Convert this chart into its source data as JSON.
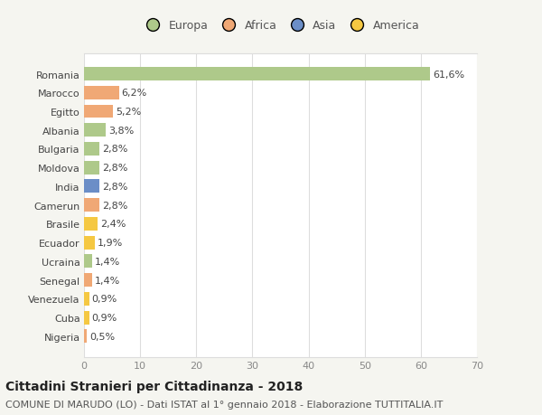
{
  "countries": [
    "Romania",
    "Marocco",
    "Egitto",
    "Albania",
    "Bulgaria",
    "Moldova",
    "India",
    "Camerun",
    "Brasile",
    "Ecuador",
    "Ucraina",
    "Senegal",
    "Venezuela",
    "Cuba",
    "Nigeria"
  ],
  "values": [
    61.6,
    6.2,
    5.2,
    3.8,
    2.8,
    2.8,
    2.8,
    2.8,
    2.4,
    1.9,
    1.4,
    1.4,
    0.9,
    0.9,
    0.5
  ],
  "labels": [
    "61,6%",
    "6,2%",
    "5,2%",
    "3,8%",
    "2,8%",
    "2,8%",
    "2,8%",
    "2,8%",
    "2,4%",
    "1,9%",
    "1,4%",
    "1,4%",
    "0,9%",
    "0,9%",
    "0,5%"
  ],
  "colors": [
    "#aec98a",
    "#f0a875",
    "#f0a875",
    "#aec98a",
    "#aec98a",
    "#aec98a",
    "#6b8ec7",
    "#f0a875",
    "#f5c842",
    "#f5c842",
    "#aec98a",
    "#f0a875",
    "#f5c842",
    "#f5c842",
    "#f0a875"
  ],
  "legend_labels": [
    "Europa",
    "Africa",
    "Asia",
    "America"
  ],
  "legend_colors": [
    "#aec98a",
    "#f0a875",
    "#6b8ec7",
    "#f5c842"
  ],
  "xlim": [
    0,
    70
  ],
  "xticks": [
    0,
    10,
    20,
    30,
    40,
    50,
    60,
    70
  ],
  "title": "Cittadini Stranieri per Cittadinanza - 2018",
  "subtitle": "COMUNE DI MARUDO (LO) - Dati ISTAT al 1° gennaio 2018 - Elaborazione TUTTITALIA.IT",
  "fig_background": "#f5f5f0",
  "plot_background": "#ffffff",
  "grid_color": "#dddddd",
  "bar_height": 0.72,
  "title_fontsize": 10,
  "subtitle_fontsize": 8,
  "label_fontsize": 8,
  "tick_fontsize": 8,
  "legend_fontsize": 9
}
